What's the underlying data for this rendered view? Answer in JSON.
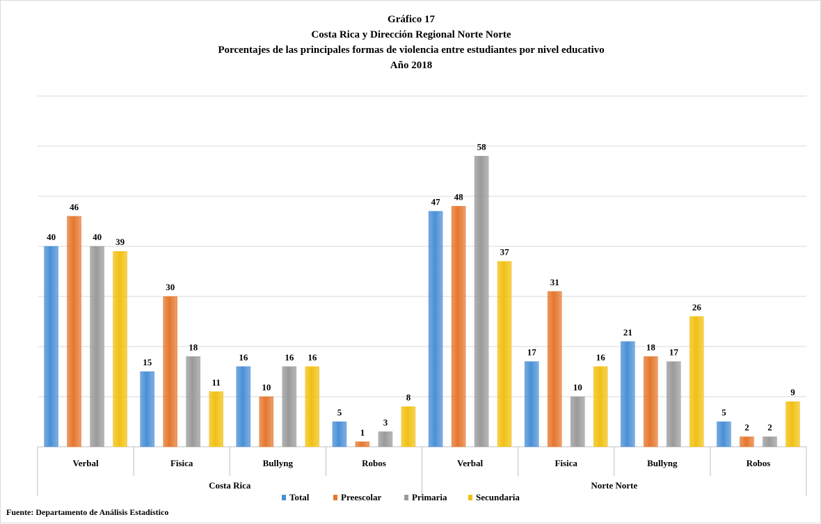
{
  "title": {
    "line1": "Gráfico 17",
    "line2": "Costa Rica y Dirección Regional Norte Norte",
    "line3": "Porcentajes de las principales formas de violencia entre estudiantes por nivel educativo",
    "line4": "Año 2018"
  },
  "source": "Fuente: Departamento de Análisis Estadístico",
  "colors": {
    "Total": "#4a8fd6",
    "Preescolar": "#e5772e",
    "Primaria": "#9a9a9a",
    "Secundaria": "#f2c012",
    "grid": "#d9d9d9"
  },
  "chart_data": {
    "type": "bar",
    "groups": [
      "Costa Rica",
      "Norte Norte"
    ],
    "categories": [
      "Verbal",
      "Fisica",
      "Bullyng",
      "Robos"
    ],
    "series": [
      {
        "name": "Total",
        "values": [
          [
            40,
            15,
            16,
            5
          ],
          [
            47,
            17,
            21,
            5
          ]
        ]
      },
      {
        "name": "Preescolar",
        "values": [
          [
            46,
            30,
            10,
            1
          ],
          [
            48,
            31,
            18,
            2
          ]
        ]
      },
      {
        "name": "Primaria",
        "values": [
          [
            40,
            18,
            16,
            3
          ],
          [
            58,
            10,
            17,
            2
          ]
        ]
      },
      {
        "name": "Secundaria",
        "values": [
          [
            39,
            11,
            16,
            8
          ],
          [
            37,
            16,
            26,
            9
          ]
        ]
      }
    ],
    "ylim": [
      0,
      70
    ],
    "grid": true,
    "legend_position": "bottom",
    "data_labels": true
  }
}
